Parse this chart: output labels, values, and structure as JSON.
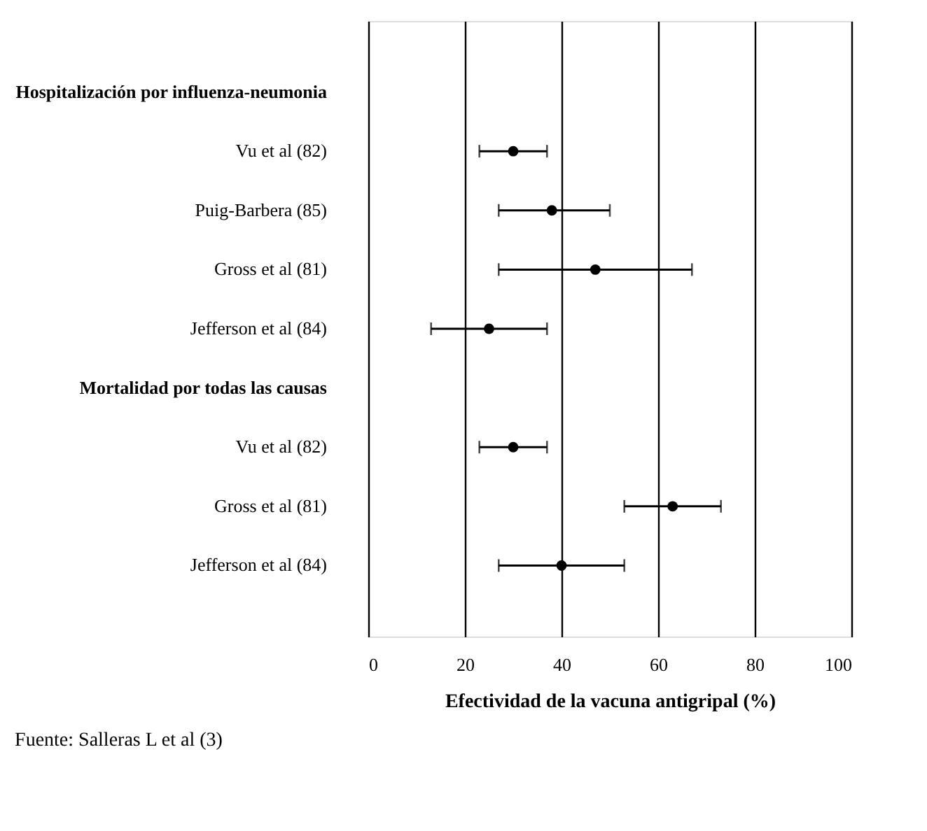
{
  "chart_data": {
    "type": "scatter",
    "orientation": "horizontal",
    "xlabel": "Efectividad de la vacuna antigripal (%)",
    "categories": [
      "Hospitalización por influenza-neumonia",
      "Vu et al (82)",
      "Puig-Barbera (85)",
      "Gross et al (81)",
      "Jefferson et al (84)",
      "Mortalidad por todas las causas",
      "Vu et al (82)",
      "Gross et al (81)",
      "Jefferson et al (84)"
    ],
    "values": [
      null,
      30,
      38,
      47,
      25,
      null,
      30,
      63,
      40
    ],
    "errors": [
      null,
      [
        23,
        37
      ],
      [
        27,
        50
      ],
      [
        27,
        67
      ],
      [
        13,
        37
      ],
      null,
      [
        23,
        37
      ],
      [
        53,
        73
      ],
      [
        27,
        53
      ]
    ],
    "color": "#000000",
    "marker": "circle",
    "grid": "x",
    "xlim": [
      0,
      100
    ],
    "xticks": [
      0,
      20,
      40,
      60,
      80,
      100
    ],
    "annotations": [
      "Fuente: Salleras L et al (3)"
    ]
  }
}
